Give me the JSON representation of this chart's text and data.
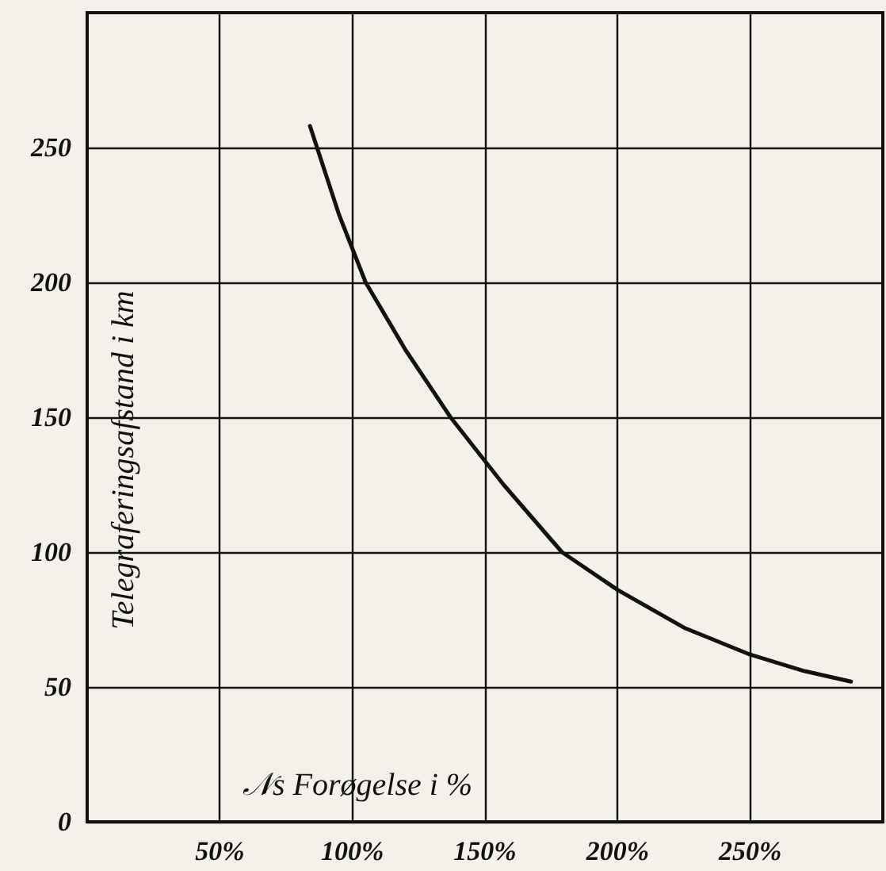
{
  "chart_data": {
    "type": "line",
    "xlabel": "𝒩s Forøgelse i %",
    "ylabel": "Telegraferingsafstand i km",
    "x": [
      84,
      95,
      105,
      120,
      137,
      157,
      179,
      200,
      225,
      250,
      270,
      288
    ],
    "series": [
      {
        "color": "#111111",
        "values": [
          258,
          225,
          200,
          175,
          150,
          125,
          100,
          86,
          72,
          62,
          56,
          52
        ]
      }
    ],
    "xlim": [
      0,
      300
    ],
    "xticks": [
      {
        "value": 50,
        "label": "50%"
      },
      {
        "value": 100,
        "label": "100%"
      },
      {
        "value": 150,
        "label": "150%"
      },
      {
        "value": 200,
        "label": "200%"
      },
      {
        "value": 250,
        "label": "250%"
      }
    ],
    "ylim": [
      0,
      300
    ],
    "yticks": [
      0,
      50,
      100,
      150,
      200,
      250
    ],
    "grid": true,
    "marker": "none",
    "line_style": "solid"
  }
}
